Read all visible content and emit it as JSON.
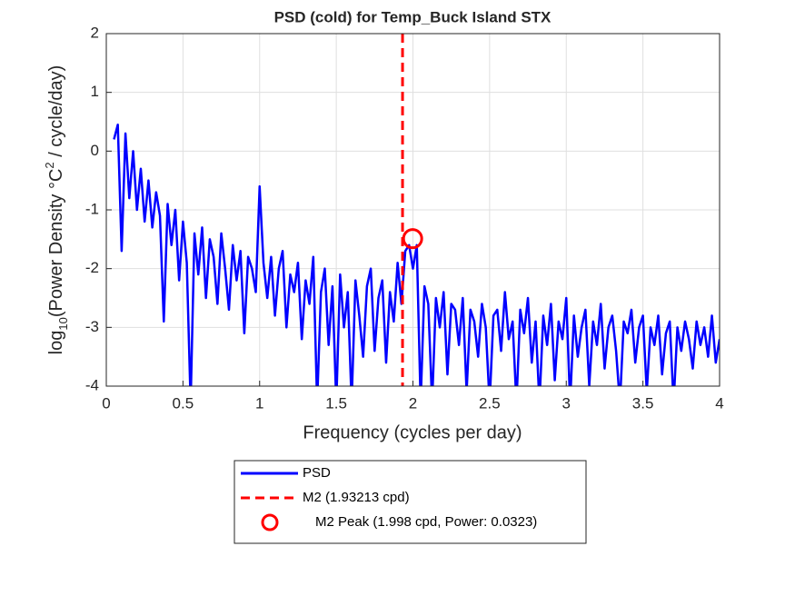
{
  "chart_data": {
    "type": "line",
    "title": "PSD (cold) for Temp_Buck Island STX",
    "xlabel": "Frequency (cycles per day)",
    "ylabel": [
      "log",
      "10",
      "(Power Density °C",
      "2",
      " / cycle/day)"
    ],
    "xlim": [
      0,
      4
    ],
    "ylim": [
      -4,
      2
    ],
    "xticks": [
      0,
      0.5,
      1,
      1.5,
      2,
      2.5,
      3,
      3.5,
      4
    ],
    "yticks": [
      -4,
      -3,
      -2,
      -1,
      0,
      1,
      2
    ],
    "grid": true,
    "legend": "south-outside",
    "series": [
      {
        "name": "PSD",
        "color": "#0000ff",
        "x": [
          0.05,
          0.075,
          0.1,
          0.125,
          0.15,
          0.175,
          0.2,
          0.225,
          0.25,
          0.275,
          0.3,
          0.325,
          0.35,
          0.375,
          0.4,
          0.425,
          0.45,
          0.475,
          0.5,
          0.525,
          0.55,
          0.575,
          0.6,
          0.625,
          0.65,
          0.675,
          0.7,
          0.725,
          0.75,
          0.775,
          0.8,
          0.825,
          0.85,
          0.875,
          0.9,
          0.925,
          0.95,
          0.975,
          1.0,
          1.025,
          1.05,
          1.075,
          1.1,
          1.125,
          1.15,
          1.175,
          1.2,
          1.225,
          1.25,
          1.275,
          1.3,
          1.325,
          1.35,
          1.375,
          1.4,
          1.425,
          1.45,
          1.475,
          1.5,
          1.525,
          1.55,
          1.575,
          1.6,
          1.625,
          1.65,
          1.675,
          1.7,
          1.725,
          1.75,
          1.775,
          1.8,
          1.825,
          1.85,
          1.875,
          1.9,
          1.925,
          1.95,
          1.975,
          2.0,
          2.025,
          2.05,
          2.075,
          2.1,
          2.125,
          2.15,
          2.175,
          2.2,
          2.225,
          2.25,
          2.275,
          2.3,
          2.325,
          2.35,
          2.375,
          2.4,
          2.425,
          2.45,
          2.475,
          2.5,
          2.525,
          2.55,
          2.575,
          2.6,
          2.625,
          2.65,
          2.675,
          2.7,
          2.725,
          2.75,
          2.775,
          2.8,
          2.825,
          2.85,
          2.875,
          2.9,
          2.925,
          2.95,
          2.975,
          3.0,
          3.025,
          3.05,
          3.075,
          3.1,
          3.125,
          3.15,
          3.175,
          3.2,
          3.225,
          3.25,
          3.275,
          3.3,
          3.325,
          3.35,
          3.375,
          3.4,
          3.425,
          3.45,
          3.475,
          3.5,
          3.525,
          3.55,
          3.575,
          3.6,
          3.625,
          3.65,
          3.675,
          3.7,
          3.725,
          3.75,
          3.775,
          3.8,
          3.825,
          3.85,
          3.875,
          3.9,
          3.925,
          3.95,
          3.975,
          4.0
        ],
        "values": [
          0.2,
          0.45,
          -1.7,
          0.3,
          -0.8,
          0.0,
          -1.0,
          -0.3,
          -1.2,
          -0.5,
          -1.3,
          -0.7,
          -1.1,
          -2.9,
          -0.9,
          -1.6,
          -1.0,
          -2.2,
          -1.2,
          -1.9,
          -4.3,
          -1.4,
          -2.1,
          -1.3,
          -2.5,
          -1.5,
          -1.8,
          -2.6,
          -1.4,
          -2.0,
          -2.7,
          -1.6,
          -2.2,
          -1.7,
          -3.1,
          -1.8,
          -2.0,
          -2.4,
          -0.6,
          -1.9,
          -2.5,
          -1.8,
          -2.8,
          -2.0,
          -1.7,
          -3.0,
          -2.1,
          -2.4,
          -1.9,
          -3.2,
          -2.2,
          -2.6,
          -1.8,
          -4.3,
          -2.4,
          -2.0,
          -3.3,
          -2.3,
          -4.3,
          -2.1,
          -3.0,
          -2.4,
          -4.3,
          -2.2,
          -2.8,
          -3.5,
          -2.3,
          -2.0,
          -3.4,
          -2.5,
          -2.2,
          -3.6,
          -2.4,
          -2.9,
          -1.9,
          -2.6,
          -1.7,
          -1.6,
          -2.0,
          -1.6,
          -4.3,
          -2.3,
          -2.6,
          -4.3,
          -2.5,
          -3.0,
          -2.4,
          -3.8,
          -2.6,
          -2.7,
          -3.3,
          -2.5,
          -4.1,
          -2.7,
          -2.9,
          -3.5,
          -2.6,
          -3.0,
          -4.3,
          -2.8,
          -2.7,
          -3.4,
          -2.4,
          -3.2,
          -2.9,
          -4.3,
          -2.7,
          -3.1,
          -2.5,
          -3.6,
          -2.9,
          -4.3,
          -2.8,
          -3.3,
          -2.6,
          -3.9,
          -2.9,
          -3.2,
          -2.5,
          -4.3,
          -2.8,
          -3.5,
          -3.0,
          -2.7,
          -4.0,
          -2.9,
          -3.3,
          -2.6,
          -3.7,
          -3.0,
          -2.8,
          -3.4,
          -4.3,
          -2.9,
          -3.1,
          -2.7,
          -3.6,
          -3.0,
          -2.8,
          -4.1,
          -3.0,
          -3.3,
          -2.8,
          -3.8,
          -3.1,
          -2.9,
          -4.3,
          -3.0,
          -3.4,
          -2.9,
          -3.2,
          -3.7,
          -2.9,
          -3.3,
          -3.0,
          -3.5,
          -2.8,
          -3.6,
          -3.2
        ]
      },
      {
        "name": "M2 (1.93213 cpd)",
        "color": "#ff0000",
        "style": "dashed-vertical",
        "x": [
          1.93213
        ]
      },
      {
        "name": "M2 Peak (1.998 cpd, Power: 0.0323)",
        "color": "#ff0000",
        "marker": "circle",
        "x": [
          1.998
        ],
        "values": [
          -1.49
        ]
      }
    ]
  }
}
